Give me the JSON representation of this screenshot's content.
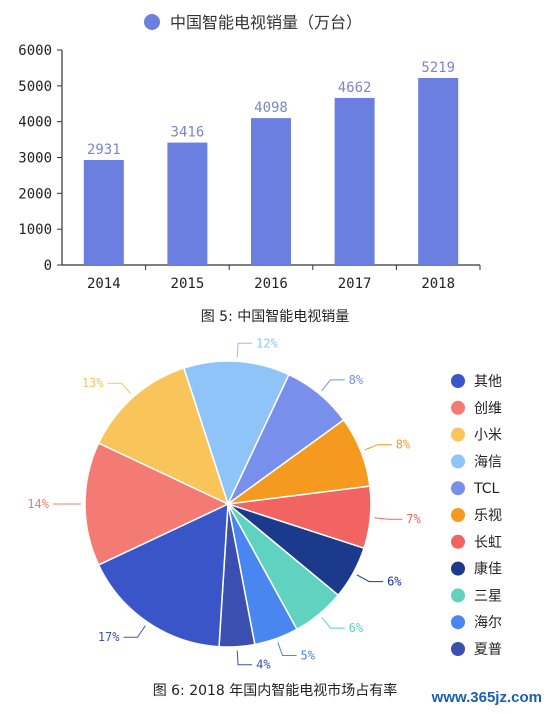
{
  "chart_data": [
    {
      "type": "bar",
      "legend": "中国智能电视销量（万台）",
      "categories": [
        "2014",
        "2015",
        "2016",
        "2017",
        "2018"
      ],
      "values": [
        2931,
        3416,
        4098,
        4662,
        5219
      ],
      "y_ticks": [
        "0",
        "1000",
        "2000",
        "3000",
        "4000",
        "5000",
        "6000"
      ],
      "ylim": [
        0,
        6000
      ],
      "color": "#6b7fe0",
      "legend_placement": "top",
      "grid": false
    },
    {
      "type": "pie",
      "legend_placement": "right",
      "slices": [
        {
          "name": "其他",
          "value": 17,
          "label": "17%",
          "color": "#3a55c8"
        },
        {
          "name": "创维",
          "value": 14,
          "label": "14%",
          "color": "#f47b74"
        },
        {
          "name": "小米",
          "value": 13,
          "label": "13%",
          "color": "#f9c55a"
        },
        {
          "name": "海信",
          "value": 12,
          "label": "12%",
          "color": "#8ec4f7"
        },
        {
          "name": "TCL",
          "value": 8,
          "label": "8%",
          "color": "#7890ec"
        },
        {
          "name": "乐视",
          "value": 8,
          "label": "8%",
          "color": "#f59a1f"
        },
        {
          "name": "长虹",
          "value": 7,
          "label": "7%",
          "color": "#f26462"
        },
        {
          "name": "康佳",
          "value": 6,
          "label": "6%",
          "color": "#1c3a8c"
        },
        {
          "name": "三星",
          "value": 6,
          "label": "6%",
          "color": "#5fd3c0"
        },
        {
          "name": "海尔",
          "value": 5,
          "label": "5%",
          "color": "#4a86ef"
        },
        {
          "name": "夏普",
          "value": 4,
          "label": "4%",
          "color": "#3a4fb0"
        }
      ]
    }
  ],
  "captions": {
    "fig5": "图 5:  中国智能电视销量",
    "fig6": "图 6:  2018 年国内智能电视市场占有率"
  },
  "watermark": "www.365jz.com"
}
